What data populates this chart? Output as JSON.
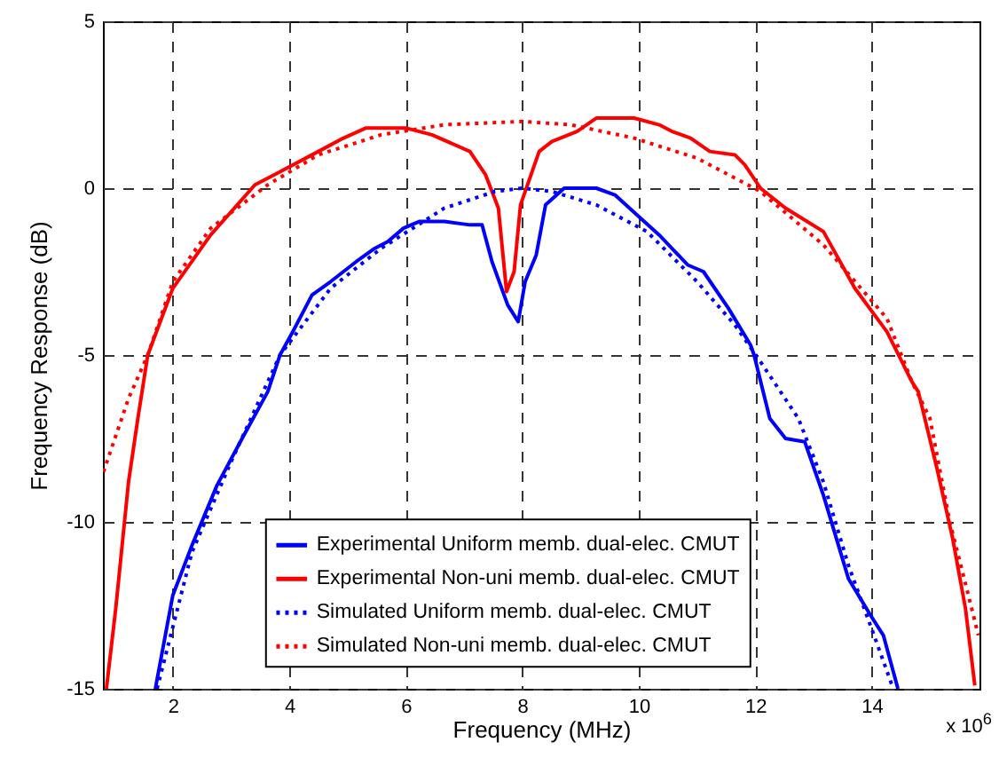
{
  "chart_data": {
    "type": "line",
    "xlabel": "Frequency (MHz)",
    "ylabel": "Frequency Response (dB)",
    "annotations": [
      "x 10$^{6}$"
    ],
    "xlim": [
      0.8,
      15.85
    ],
    "xticks": [
      2,
      4,
      6,
      8,
      10,
      12,
      14
    ],
    "ylim": [
      -15,
      5
    ],
    "yticks": [
      -15,
      -10,
      -5,
      0,
      5
    ],
    "grid": true,
    "legend": "bottom",
    "series": [
      {
        "name": "Experimental Uniform memb. dual-elec. CMUT",
        "color": "#0000ff",
        "line_style": "solid",
        "x": [
          1.7,
          2,
          2.33,
          2.76,
          3.19,
          3.63,
          3.84,
          4.06,
          4.39,
          4.71,
          5.15,
          5.47,
          5.69,
          5.96,
          6.23,
          6.66,
          7.1,
          7.31,
          7.48,
          7.75,
          7.93,
          8.05,
          8.24,
          8.4,
          8.72,
          8.94,
          9.27,
          9.59,
          10.03,
          10.35,
          10.84,
          11.11,
          11.54,
          11.92,
          11.98,
          12.25,
          12.52,
          12.85,
          13.17,
          13.6,
          13.98,
          14.2,
          14.45
        ],
        "values": [
          -15,
          -12.2,
          -10.7,
          -8.9,
          -7.5,
          -6.1,
          -5,
          -4.3,
          -3.2,
          -2.8,
          -2.2,
          -1.8,
          -1.6,
          -1.2,
          -1,
          -1,
          -1.1,
          -1.1,
          -2.2,
          -3.5,
          -4,
          -2.8,
          -2,
          -0.5,
          0,
          0,
          0,
          -0.2,
          -0.9,
          -1.4,
          -2.3,
          -2.5,
          -3.6,
          -4.7,
          -5,
          -6.9,
          -7.5,
          -7.6,
          -9.2,
          -11.7,
          -12.8,
          -13.4,
          -15
        ]
      },
      {
        "name": "Experimental Non-uni memb. dual-elec. CMUT",
        "color": "#ff0000",
        "line_style": "solid",
        "x": [
          0.86,
          1.02,
          1.24,
          1.4,
          1.57,
          2,
          2.65,
          3.41,
          3.74,
          4.5,
          4.93,
          5.31,
          6.01,
          6.45,
          7.1,
          7.37,
          7.59,
          7.73,
          7.86,
          7.97,
          8.29,
          8.51,
          8.94,
          9.27,
          9.48,
          9.92,
          10.35,
          10.57,
          10.89,
          11.22,
          11.65,
          11.82,
          12.09,
          12.52,
          13.17,
          13.71,
          14.26,
          14.69,
          14.8,
          15.12,
          15.39,
          15.61,
          15.77
        ],
        "values": [
          -15,
          -12.6,
          -8.8,
          -6.9,
          -5,
          -3,
          -1.4,
          0.1,
          0.4,
          1.1,
          1.5,
          1.8,
          1.8,
          1.6,
          1.1,
          0.4,
          -0.6,
          -3.1,
          -2.5,
          -0.5,
          1.1,
          1.4,
          1.7,
          2.1,
          2.1,
          2.1,
          1.9,
          1.7,
          1.5,
          1.1,
          1,
          0.7,
          0,
          -0.6,
          -1.3,
          -3,
          -4.3,
          -5.8,
          -6.1,
          -8.4,
          -10.5,
          -12.6,
          -14.9
        ]
      },
      {
        "name": "Simulated Uniform memb. dual-elec. CMUT",
        "color": "#0000ff",
        "line_style": "dotted",
        "x": [
          1.73,
          2.33,
          3,
          3.84,
          4.71,
          5.58,
          6.66,
          7.53,
          8,
          8.51,
          9.27,
          10.14,
          11,
          11.65,
          12.09,
          12.74,
          13.17,
          13.6,
          14.04,
          14.37
        ],
        "values": [
          -15,
          -10.9,
          -8.2,
          -5,
          -3,
          -1.8,
          -0.6,
          -0.1,
          0,
          -0.1,
          -0.5,
          -1.3,
          -2.8,
          -4.1,
          -5.2,
          -6.9,
          -8.8,
          -11.3,
          -13.4,
          -15
        ]
      },
      {
        "name": "Simulated Non-uni memb. dual-elec. CMUT",
        "color": "#ff0000",
        "line_style": "dotted",
        "x": [
          0.81,
          1.24,
          1.57,
          2,
          2.65,
          3.63,
          4.5,
          5.58,
          6.66,
          8,
          8.83,
          9.92,
          11,
          12.09,
          13.17,
          14.26,
          14.69,
          15,
          15.34,
          15.66,
          15.83
        ],
        "values": [
          -8.5,
          -6.3,
          -5,
          -2.8,
          -1.2,
          0.1,
          1,
          1.6,
          1.9,
          2,
          1.9,
          1.5,
          0.9,
          -0.1,
          -1.7,
          -3.9,
          -5.8,
          -6.9,
          -10,
          -12.2,
          -13.4
        ]
      }
    ]
  }
}
